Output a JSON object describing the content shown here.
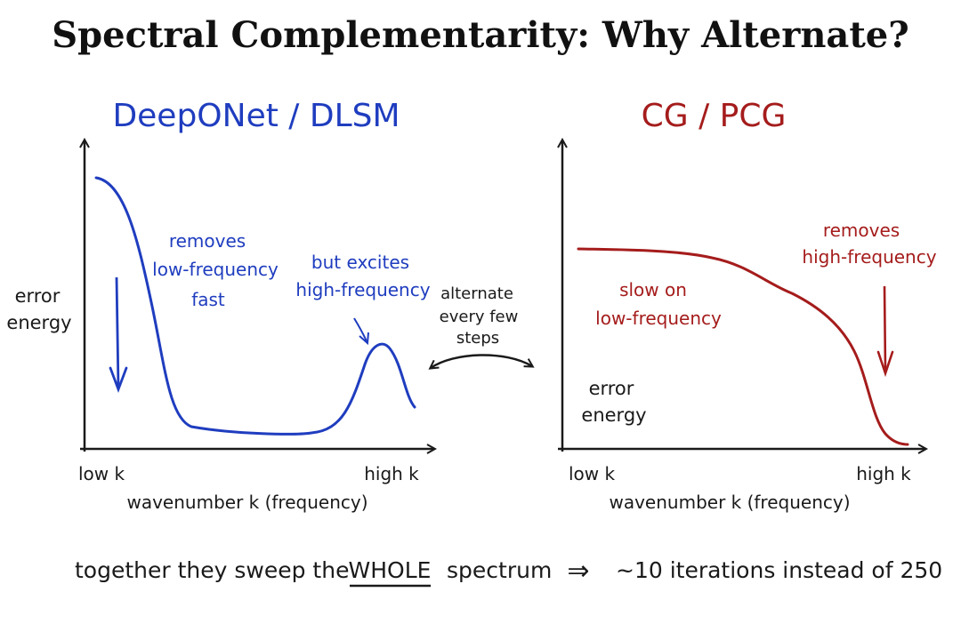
{
  "title": "Spectral Complementarity: Why Alternate?",
  "colors": {
    "blue": "#1f3dbf",
    "red": "#a51c1c",
    "ink": "#1a1a1a"
  },
  "left_panel": {
    "heading": "DeepONet / DLSM",
    "y_label_line1": "error",
    "y_label_line2": "energy",
    "x_tick_low": "low k",
    "x_tick_high": "high k",
    "x_label": "wavenumber k (frequency)",
    "note1_line1": "removes",
    "note1_line2": "low-frequency",
    "note1_line3": "fast",
    "note2_line1": "but excites",
    "note2_line2": "high-frequency"
  },
  "right_panel": {
    "heading": "CG / PCG",
    "y_label_line1": "error",
    "y_label_line2": "energy",
    "x_tick_low": "low k",
    "x_tick_high": "high k",
    "x_label": "wavenumber k (frequency)",
    "note1_line1": "slow on",
    "note1_line2": "low-frequency",
    "note2_line1": "removes",
    "note2_line2": "high-frequency"
  },
  "middle": {
    "line1": "alternate",
    "line2": "every few",
    "line3": "steps"
  },
  "bottom": {
    "part1": "together they sweep the",
    "emphasis": "WHOLE",
    "part2": "spectrum",
    "implies": "⇒",
    "part3": "~10 iterations instead of 250"
  }
}
